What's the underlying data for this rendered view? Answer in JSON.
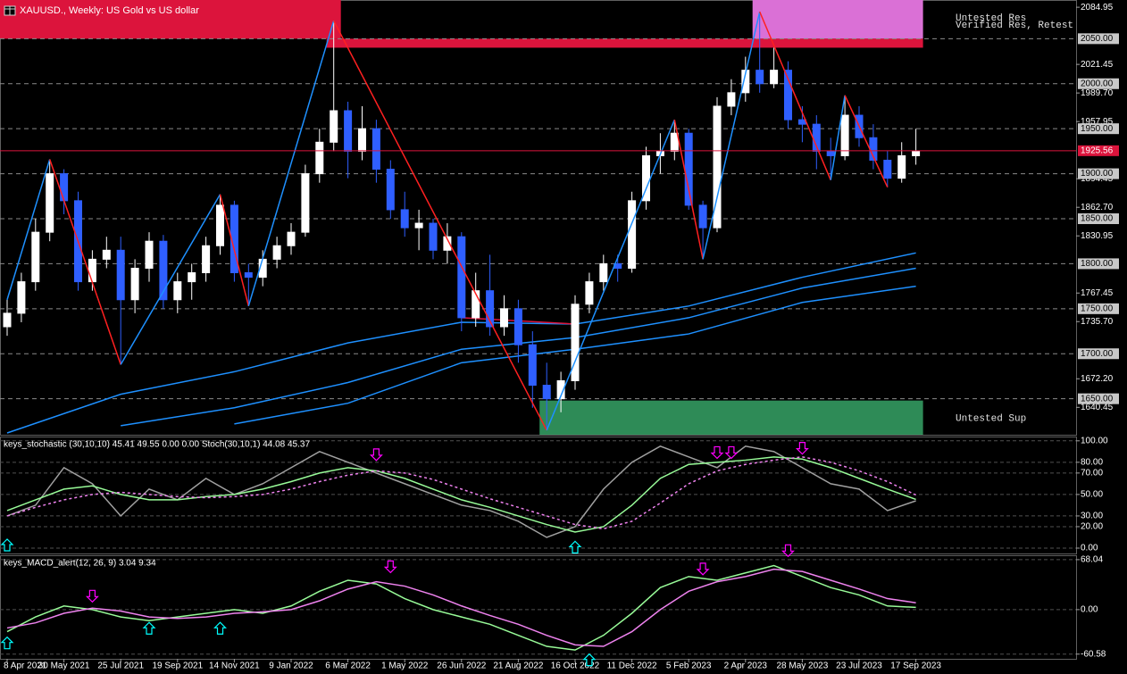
{
  "chart_data": [
    {
      "type": "candlestick",
      "title": "XAUUSD., Weekly: US Gold vs US dollar",
      "categories": [
        "8 Apr 2021",
        null,
        null,
        null,
        "30 May 2021",
        null,
        null,
        null,
        "25 Jul 2021",
        null,
        null,
        null,
        "19 Sep 2021",
        null,
        null,
        null,
        "14 Nov 2021",
        null,
        null,
        null,
        "9 Jan 2022",
        null,
        null,
        null,
        "6 Mar 2022",
        null,
        null,
        null,
        "1 May 2022",
        null,
        null,
        null,
        "26 Jun 2022",
        null,
        null,
        null,
        "21 Aug 2022",
        null,
        null,
        null,
        "16 Oct 2022",
        null,
        null,
        null,
        "11 Dec 2022",
        null,
        null,
        null,
        "5 Feb 2023",
        null,
        null,
        null,
        "2 Apr 2023",
        null,
        null,
        null,
        "28 May 2023",
        null,
        null,
        null,
        "23 Jul 2023",
        null,
        null,
        null,
        "17 Sep 2023"
      ],
      "ohlc": [
        [
          1730,
          1760,
          1720,
          1745
        ],
        [
          1745,
          1790,
          1735,
          1780
        ],
        [
          1780,
          1850,
          1770,
          1835
        ],
        [
          1835,
          1916,
          1825,
          1900
        ],
        [
          1900,
          1905,
          1855,
          1870
        ],
        [
          1870,
          1880,
          1770,
          1780
        ],
        [
          1780,
          1815,
          1770,
          1805
        ],
        [
          1805,
          1830,
          1795,
          1815
        ],
        [
          1815,
          1830,
          1688,
          1760
        ],
        [
          1760,
          1805,
          1745,
          1795
        ],
        [
          1795,
          1835,
          1780,
          1825
        ],
        [
          1825,
          1832,
          1750,
          1760
        ],
        [
          1760,
          1790,
          1745,
          1780
        ],
        [
          1780,
          1800,
          1760,
          1790
        ],
        [
          1790,
          1830,
          1780,
          1820
        ],
        [
          1820,
          1877,
          1810,
          1865
        ],
        [
          1865,
          1870,
          1780,
          1790
        ],
        [
          1790,
          1800,
          1753,
          1785
        ],
        [
          1785,
          1815,
          1775,
          1805
        ],
        [
          1805,
          1830,
          1795,
          1820
        ],
        [
          1820,
          1845,
          1810,
          1835
        ],
        [
          1835,
          1910,
          1830,
          1900
        ],
        [
          1900,
          1950,
          1890,
          1935
        ],
        [
          1935,
          2070,
          1925,
          1970
        ],
        [
          1970,
          1980,
          1895,
          1925
        ],
        [
          1925,
          1975,
          1915,
          1950
        ],
        [
          1950,
          1960,
          1890,
          1905
        ],
        [
          1905,
          1915,
          1850,
          1860
        ],
        [
          1860,
          1880,
          1830,
          1840
        ],
        [
          1840,
          1860,
          1815,
          1845
        ],
        [
          1845,
          1850,
          1805,
          1815
        ],
        [
          1815,
          1845,
          1800,
          1830
        ],
        [
          1830,
          1835,
          1725,
          1740
        ],
        [
          1740,
          1790,
          1730,
          1770
        ],
        [
          1770,
          1810,
          1720,
          1730
        ],
        [
          1730,
          1765,
          1720,
          1750
        ],
        [
          1750,
          1760,
          1690,
          1710
        ],
        [
          1710,
          1725,
          1640,
          1665
        ],
        [
          1665,
          1690,
          1615,
          1650
        ],
        [
          1650,
          1680,
          1635,
          1670
        ],
        [
          1670,
          1765,
          1660,
          1755
        ],
        [
          1755,
          1790,
          1745,
          1780
        ],
        [
          1780,
          1810,
          1770,
          1800
        ],
        [
          1800,
          1810,
          1780,
          1795
        ],
        [
          1795,
          1880,
          1790,
          1870
        ],
        [
          1870,
          1930,
          1860,
          1920
        ],
        [
          1920,
          1945,
          1900,
          1925
        ],
        [
          1925,
          1960,
          1915,
          1945
        ],
        [
          1945,
          1950,
          1860,
          1865
        ],
        [
          1865,
          1870,
          1805,
          1840
        ],
        [
          1840,
          1985,
          1835,
          1975
        ],
        [
          1975,
          2005,
          1965,
          1990
        ],
        [
          1990,
          2030,
          1980,
          2015
        ],
        [
          2015,
          2080,
          1990,
          2000
        ],
        [
          2000,
          2040,
          1995,
          2015
        ],
        [
          2015,
          2025,
          1950,
          1960
        ],
        [
          1960,
          1975,
          1935,
          1955
        ],
        [
          1955,
          1965,
          1905,
          1925
        ],
        [
          1925,
          1940,
          1893,
          1920
        ],
        [
          1920,
          1987,
          1915,
          1965
        ],
        [
          1965,
          1975,
          1930,
          1940
        ],
        [
          1940,
          1955,
          1905,
          1915
        ],
        [
          1915,
          1925,
          1885,
          1895
        ],
        [
          1895,
          1935,
          1890,
          1920
        ],
        [
          1920,
          1950,
          1910,
          1925
        ]
      ],
      "up_color": "#ffffff",
      "down_color": "#2f5fff",
      "ylim": [
        1610,
        2093
      ],
      "yticks": [
        2084.95,
        2021.45,
        {
          "value": 1989.7,
          "label": "1989.70"
        },
        1957.95,
        1894.45,
        {
          "value": 1862.7,
          "label": "1862.70"
        },
        1830.95,
        1767.45,
        {
          "value": 1735.7,
          "label": "1735.70"
        },
        {
          "value": 1672.2,
          "label": "1672.20"
        },
        1640.45
      ],
      "levels": [
        {
          "value": 2050,
          "label": "2050.00"
        },
        {
          "value": 2000,
          "label": "2000.00"
        },
        {
          "value": 1950,
          "label": "1950.00"
        },
        {
          "value": 1900,
          "label": "1900.00"
        },
        {
          "value": 1850,
          "label": "1850.00"
        },
        {
          "value": 1800,
          "label": "1800.00"
        },
        {
          "value": 1750,
          "label": "1750.00"
        },
        {
          "value": 1700,
          "label": "1700.00"
        },
        {
          "value": 1650,
          "label": "1650.00"
        }
      ],
      "current_price": 1925.56,
      "current_price_color": "#dc143c",
      "zones": [
        {
          "start": 53,
          "end": 64,
          "top": 2093,
          "bottom": 2050,
          "color": "#da70d6",
          "label": "Untested Res"
        },
        {
          "start": 0,
          "end": 23,
          "top": 2093,
          "bottom": 2050,
          "color": "#dc143c",
          "label": "Verified Res, Retest"
        },
        {
          "start": 23,
          "end": 64,
          "top": 2050,
          "bottom": 2040,
          "color": "#dc143c"
        },
        {
          "start": 38,
          "end": 64,
          "top": 1648,
          "bottom": 1610,
          "color": "#2e8b57",
          "label": "Untested Sup"
        }
      ],
      "zigzag": {
        "x": [
          0,
          3,
          8,
          15,
          17,
          23,
          38,
          47,
          49,
          53,
          58,
          59,
          62
        ],
        "values": [
          1760,
          1916,
          1688,
          1877,
          1753,
          2070,
          1615,
          1960,
          1805,
          2080,
          1893,
          1987,
          1885
        ],
        "up_color": "#1e90ff",
        "down_color": "#ff2020"
      },
      "x": [
        0,
        8,
        16,
        24,
        32,
        40,
        48,
        56,
        64
      ],
      "series": [
        {
          "color": "#1e90ff",
          "values": [
            1612,
            1655,
            1680,
            1712,
            1735,
            1733,
            1753,
            1785,
            1812
          ]
        },
        {
          "color": "#1e90ff",
          "values": [
            null,
            1620,
            1640,
            1668,
            1705,
            1718,
            1740,
            1773,
            1795
          ]
        },
        {
          "color": "#1e90ff",
          "values": [
            null,
            null,
            1622,
            1645,
            1690,
            1705,
            1722,
            1757,
            1775
          ]
        },
        {
          "color": "#dc143c",
          "values": [
            null,
            null,
            null,
            null,
            1740,
            1733,
            null,
            null,
            null
          ]
        }
      ]
    },
    {
      "type": "line",
      "title": "keys_stochastic (30,10,10) 45.41 49.55 0.00 0.00 Stoch(30,10,1) 44.08 45.37",
      "x": [
        0,
        2,
        4,
        6,
        8,
        10,
        12,
        14,
        16,
        18,
        20,
        22,
        24,
        26,
        28,
        30,
        32,
        34,
        36,
        38,
        40,
        42,
        44,
        46,
        48,
        50,
        52,
        54,
        56,
        58,
        60,
        62,
        64
      ],
      "ylim": [
        -5,
        104
      ],
      "yticks": [
        {
          "value": 100,
          "label": "100.00"
        },
        {
          "value": 80,
          "label": "80.00"
        },
        {
          "value": 70,
          "label": "70.00"
        },
        {
          "value": 50,
          "label": "50.00"
        },
        {
          "value": 30,
          "label": "30.00"
        },
        {
          "value": 20,
          "label": "20.00"
        },
        {
          "value": 0,
          "label": "0.00"
        }
      ],
      "series": [
        {
          "color": "#a0a0a0",
          "values": [
            30,
            40,
            75,
            60,
            30,
            55,
            45,
            65,
            50,
            60,
            75,
            90,
            80,
            70,
            60,
            50,
            40,
            35,
            25,
            10,
            20,
            55,
            80,
            95,
            85,
            75,
            95,
            90,
            75,
            60,
            55,
            35,
            44.08
          ]
        },
        {
          "color": "#98fb98",
          "values": [
            35,
            45,
            55,
            58,
            50,
            45,
            45,
            48,
            50,
            55,
            62,
            70,
            75,
            72,
            65,
            55,
            45,
            38,
            30,
            22,
            15,
            20,
            40,
            65,
            78,
            80,
            82,
            85,
            83,
            75,
            65,
            55,
            45.37
          ]
        },
        {
          "color": "#ee82ee",
          "dash": true,
          "values": [
            30,
            38,
            45,
            50,
            52,
            50,
            48,
            47,
            48,
            50,
            55,
            62,
            68,
            72,
            70,
            64,
            55,
            46,
            38,
            30,
            22,
            18,
            25,
            42,
            60,
            72,
            78,
            82,
            85,
            80,
            72,
            62,
            49.55
          ]
        }
      ],
      "signals": [
        {
          "x": 0,
          "value": 10,
          "direction": "up"
        },
        {
          "x": 40,
          "value": 8,
          "direction": "up"
        },
        {
          "x": 26,
          "value": 80,
          "direction": "down"
        },
        {
          "x": 50,
          "value": 82,
          "direction": "down"
        },
        {
          "x": 51,
          "value": 82,
          "direction": "down"
        },
        {
          "x": 56,
          "value": 86,
          "direction": "down"
        }
      ],
      "up_color": "#00ffff",
      "down_color": "#ff00ff"
    },
    {
      "type": "line",
      "title": "keys_MACD_alert(12, 26, 9) 3.04 9.34",
      "x": [
        0,
        2,
        4,
        6,
        8,
        10,
        12,
        14,
        16,
        18,
        20,
        22,
        24,
        26,
        28,
        30,
        32,
        34,
        36,
        38,
        40,
        42,
        44,
        46,
        48,
        50,
        52,
        54,
        56,
        58,
        60,
        62,
        64
      ],
      "ylim": [
        -67,
        74
      ],
      "yticks": [
        68.04,
        {
          "value": 0,
          "label": "0.00"
        },
        -60.58
      ],
      "series": [
        {
          "color": "#98fb98",
          "values": [
            -30,
            -10,
            5,
            0,
            -10,
            -15,
            -10,
            -5,
            0,
            -5,
            5,
            25,
            40,
            35,
            15,
            0,
            -10,
            -20,
            -35,
            -50,
            -55,
            -35,
            -5,
            30,
            45,
            40,
            50,
            60,
            45,
            30,
            20,
            5,
            3.04
          ]
        },
        {
          "color": "#ee82ee",
          "values": [
            -25,
            -18,
            -5,
            2,
            -2,
            -10,
            -12,
            -10,
            -5,
            -3,
            0,
            12,
            28,
            38,
            32,
            20,
            5,
            -8,
            -20,
            -35,
            -48,
            -50,
            -30,
            0,
            25,
            38,
            45,
            55,
            52,
            40,
            28,
            15,
            9.34
          ]
        }
      ],
      "signals": [
        {
          "x": 0,
          "value": -35,
          "direction": "up"
        },
        {
          "x": 6,
          "value": 8,
          "direction": "down"
        },
        {
          "x": 10,
          "value": -15,
          "direction": "up"
        },
        {
          "x": 15,
          "value": -15,
          "direction": "up"
        },
        {
          "x": 27,
          "value": 48,
          "direction": "down"
        },
        {
          "x": 41,
          "value": -58,
          "direction": "up"
        },
        {
          "x": 49,
          "value": 45,
          "direction": "down"
        },
        {
          "x": 55,
          "value": 70,
          "direction": "down"
        }
      ],
      "up_color": "#00ffff",
      "down_color": "#ff00ff"
    }
  ]
}
